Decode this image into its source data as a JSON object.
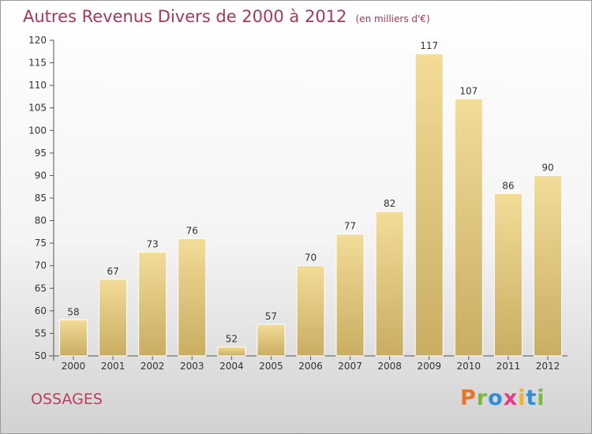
{
  "title": "Autres Revenus Divers de 2000 à 2012",
  "subtitle": "(en milliers d'€)",
  "commune": "OSSAGES",
  "logo": {
    "text": "Proxiti",
    "letter_colors": [
      "#e8752a",
      "#7bb83c",
      "#2f8fd8",
      "#e23d8b",
      "#f0b323",
      "#2f8fd8",
      "#7bb83c"
    ]
  },
  "colors": {
    "title": "#b0345a",
    "commune": "#c33a5a",
    "bar_light": "#f2dc98",
    "bar_dark": "#c9ad62",
    "axis": "#555555",
    "text": "#333333"
  },
  "chart_data": {
    "type": "bar",
    "categories": [
      "2000",
      "2001",
      "2002",
      "2003",
      "2004",
      "2005",
      "2006",
      "2007",
      "2008",
      "2009",
      "2010",
      "2011",
      "2012"
    ],
    "values": [
      58,
      67,
      73,
      76,
      52,
      57,
      70,
      77,
      82,
      117,
      107,
      86,
      90
    ],
    "data_labels": [
      "58",
      "67",
      "73",
      "76",
      "52",
      "57",
      "70",
      "77",
      "82",
      "117",
      "107",
      "86",
      "90"
    ],
    "ylim": [
      50,
      120
    ],
    "yticks": [
      50,
      55,
      60,
      65,
      70,
      75,
      80,
      85,
      90,
      95,
      100,
      105,
      110,
      115,
      120
    ],
    "ytick_labels": [
      "50",
      "55",
      "60",
      "65",
      "70",
      "75",
      "80",
      "85",
      "90",
      "95",
      "100",
      "105",
      "110",
      "115",
      "120"
    ],
    "grid": false,
    "legend": "none"
  }
}
